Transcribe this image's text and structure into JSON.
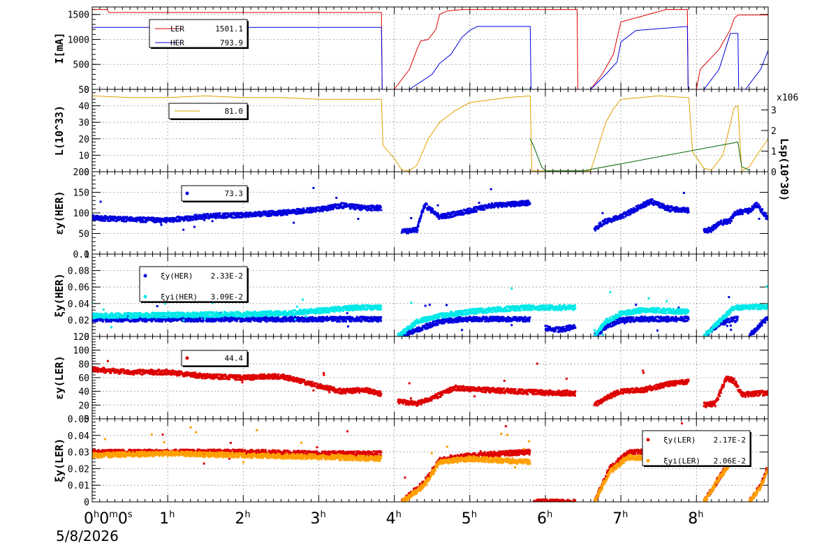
{
  "date_label": "5/8/2026",
  "chart_data": [
    {
      "type": "line",
      "ylabel": "I[mA]",
      "ylim": [
        0,
        1650
      ],
      "yticks": [
        0,
        500,
        1000,
        1500
      ],
      "legend": [
        {
          "name": "LER",
          "value": "1501.1",
          "color": "#dd0000"
        },
        {
          "name": "HER",
          "value": "793.9",
          "color": "#0000dd"
        }
      ],
      "series": [
        {
          "name": "LER",
          "color": "#dd0000",
          "x": [
            0,
            0.2,
            0.22,
            3.83,
            3.84,
            3.95,
            4.0,
            4.2,
            4.3,
            4.35,
            4.45,
            4.55,
            4.6,
            4.7,
            4.9,
            5.2,
            6.42,
            6.43,
            6.6,
            6.75,
            6.9,
            7.0,
            7.6,
            7.88,
            7.89,
            8.0,
            8.05,
            8.3,
            8.45,
            8.5,
            8.55,
            8.95
          ],
          "y": [
            1600,
            1600,
            1540,
            1540,
            0,
            0,
            0,
            400,
            800,
            970,
            1000,
            1200,
            1500,
            1570,
            1600,
            1600,
            1600,
            0,
            0,
            300,
            700,
            1350,
            1600,
            1600,
            0,
            0,
            400,
            800,
            1200,
            1420,
            1490,
            1490
          ]
        },
        {
          "name": "HER",
          "color": "#0000dd",
          "x": [
            0,
            3.83,
            3.84,
            4.1,
            4.2,
            4.5,
            4.6,
            4.75,
            4.9,
            5.0,
            5.1,
            5.8,
            5.81,
            6.4,
            6.6,
            6.8,
            6.95,
            7.0,
            7.2,
            7.88,
            7.89,
            8.1,
            8.3,
            8.45,
            8.55,
            8.56,
            8.65,
            8.75,
            8.85,
            8.95
          ],
          "y": [
            1240,
            1240,
            0,
            0,
            0,
            300,
            520,
            700,
            1050,
            1180,
            1260,
            1260,
            0,
            0,
            0,
            300,
            550,
            950,
            1180,
            1260,
            0,
            0,
            400,
            1120,
            1120,
            0,
            0,
            200,
            400,
            780
          ]
        }
      ]
    },
    {
      "type": "line",
      "ylabel": "L(10^33)",
      "ylim": [
        0,
        50
      ],
      "yticks": [
        0,
        10,
        20,
        30,
        40,
        50
      ],
      "y2label": "Lsp(10^30)",
      "y2lim": [
        0,
        4
      ],
      "y2ticks": [
        0,
        1,
        2,
        3
      ],
      "y2scale": "x10^6",
      "legend": [
        {
          "name": "",
          "value": "81.0",
          "color": "#e0a000"
        }
      ],
      "series": [
        {
          "name": "L",
          "color": "#e0a000",
          "x": [
            0,
            0.5,
            1.0,
            1.5,
            2.0,
            2.5,
            3.0,
            3.5,
            3.83,
            3.85,
            4.0,
            4.1,
            4.2,
            4.3,
            4.45,
            4.6,
            4.8,
            5.0,
            5.5,
            5.8,
            5.82,
            6.6,
            6.7,
            6.8,
            6.9,
            7.0,
            7.5,
            7.9,
            7.95,
            8.1,
            8.2,
            8.35,
            8.5,
            8.55,
            8.6,
            8.7,
            8.8,
            8.95
          ],
          "y": [
            46,
            45,
            45,
            46,
            45,
            45,
            44,
            44,
            44,
            16,
            8,
            1,
            0.5,
            4,
            20,
            30,
            37,
            42,
            45,
            46,
            0.5,
            0.5,
            15,
            30,
            38,
            44,
            46,
            45,
            12,
            2,
            1,
            10,
            39,
            40,
            0.5,
            3,
            10,
            20
          ]
        },
        {
          "name": "Lsp",
          "color": "#006600",
          "x": [
            5.8,
            5.85,
            5.95,
            6.0,
            6.5,
            8.55,
            8.6,
            8.7
          ],
          "y": [
            20,
            15,
            3,
            0.5,
            0.5,
            18,
            3,
            1
          ]
        }
      ]
    },
    {
      "type": "scatter",
      "ylabel": "εy(HER)",
      "ylim": [
        0,
        200
      ],
      "yticks": [
        0,
        50,
        100,
        150,
        200
      ],
      "legend": [
        {
          "name": "",
          "value": "73.3",
          "color": "#0000dd"
        }
      ],
      "series": [
        {
          "name": "εy(HER)",
          "color": "#0000dd",
          "segments": [
            {
              "x": [
                0,
                0.5,
                1.0,
                1.5,
                2.0,
                2.5,
                3.0,
                3.3,
                3.6,
                3.83
              ],
              "y": [
                88,
                84,
                82,
                92,
                95,
                100,
                108,
                118,
                112,
                112
              ]
            },
            {
              "x": [
                4.1,
                4.3,
                4.4,
                4.6,
                5.0,
                5.3,
                5.6,
                5.8
              ],
              "y": [
                55,
                58,
                120,
                90,
                105,
                118,
                122,
                125
              ]
            },
            {
              "x": [
                6.65,
                6.8,
                7.0,
                7.2,
                7.4,
                7.6,
                7.9
              ],
              "y": [
                60,
                80,
                90,
                110,
                128,
                112,
                105
              ]
            },
            {
              "x": [
                8.1,
                8.2,
                8.3,
                8.45,
                8.5,
                8.7,
                8.8,
                8.95
              ],
              "y": [
                55,
                60,
                75,
                80,
                100,
                105,
                120,
                85
              ]
            }
          ]
        }
      ]
    },
    {
      "type": "scatter",
      "ylabel": "ξy(HER)",
      "ylim": [
        0,
        0.1
      ],
      "yticks": [
        0,
        0.02,
        0.04,
        0.06,
        0.08,
        0.1
      ],
      "legend": [
        {
          "name": "ξy(HER)",
          "value": "2.33E-2",
          "color": "#0000dd"
        },
        {
          "name": "ξyi(HER)",
          "value": "3.09E-2",
          "color": "#00e8e8"
        }
      ],
      "series": [
        {
          "name": "ξy(HER)",
          "color": "#0000dd",
          "segments": [
            {
              "x": [
                0,
                1,
                2,
                3,
                3.83
              ],
              "y": [
                0.021,
                0.021,
                0.021,
                0.021,
                0.021
              ]
            },
            {
              "x": [
                4.05,
                4.3,
                4.6,
                4.9,
                5.8
              ],
              "y": [
                0.0,
                0.008,
                0.018,
                0.021,
                0.021
              ]
            },
            {
              "x": [
                6.0,
                6.2,
                6.4
              ],
              "y": [
                0.01,
                0.008,
                0.012
              ]
            },
            {
              "x": [
                6.65,
                6.8,
                7.0,
                7.3,
                7.9
              ],
              "y": [
                0.0,
                0.012,
                0.02,
                0.021,
                0.021
              ]
            },
            {
              "x": [
                8.1,
                8.3,
                8.5,
                8.55
              ],
              "y": [
                0.0,
                0.015,
                0.021,
                0.021
              ]
            },
            {
              "x": [
                8.7,
                8.85,
                8.95
              ],
              "y": [
                0.0,
                0.015,
                0.022
              ]
            }
          ]
        },
        {
          "name": "ξyi(HER)",
          "color": "#00e8e8",
          "segments": [
            {
              "x": [
                0,
                1,
                2,
                2.5,
                3.0,
                3.5,
                3.83
              ],
              "y": [
                0.025,
                0.026,
                0.027,
                0.028,
                0.031,
                0.035,
                0.035
              ]
            },
            {
              "x": [
                4.05,
                4.3,
                4.6,
                5.0,
                5.4,
                5.8,
                6.4
              ],
              "y": [
                0.0,
                0.018,
                0.025,
                0.03,
                0.033,
                0.035,
                0.035
              ]
            },
            {
              "x": [
                6.65,
                6.8,
                7.0,
                7.3,
                7.9
              ],
              "y": [
                0.0,
                0.018,
                0.028,
                0.032,
                0.03
              ]
            },
            {
              "x": [
                8.1,
                8.3,
                8.5,
                8.95
              ],
              "y": [
                0.0,
                0.018,
                0.035,
                0.036
              ]
            }
          ]
        }
      ]
    },
    {
      "type": "scatter",
      "ylabel": "εy(LER)",
      "ylim": [
        0,
        120
      ],
      "yticks": [
        0,
        20,
        40,
        60,
        80,
        100,
        120
      ],
      "legend": [
        {
          "name": "",
          "value": "44.4",
          "color": "#dd0000"
        }
      ],
      "series": [
        {
          "name": "εy(LER)",
          "color": "#dd0000",
          "segments": [
            {
              "x": [
                0,
                0.5,
                1.0,
                1.5,
                2.0,
                2.5,
                3.0,
                3.3,
                3.6,
                3.83
              ],
              "y": [
                72,
                68,
                68,
                62,
                60,
                62,
                48,
                40,
                42,
                36
              ]
            },
            {
              "x": [
                4.05,
                4.3,
                4.5,
                4.8,
                5.2,
                5.6,
                6.0,
                6.4
              ],
              "y": [
                25,
                22,
                30,
                45,
                42,
                40,
                38,
                37
              ]
            },
            {
              "x": [
                6.65,
                6.8,
                7.0,
                7.3,
                7.6,
                7.9
              ],
              "y": [
                20,
                30,
                40,
                42,
                50,
                55
              ]
            },
            {
              "x": [
                8.1,
                8.25,
                8.4,
                8.5,
                8.6,
                8.95
              ],
              "y": [
                20,
                22,
                60,
                55,
                35,
                38
              ]
            }
          ]
        }
      ]
    },
    {
      "type": "scatter",
      "ylabel": "ξy(LER)",
      "ylim": [
        0,
        0.05
      ],
      "yticks": [
        0,
        0.01,
        0.02,
        0.03,
        0.04,
        0.05
      ],
      "legend": [
        {
          "name": "ξy(LER)",
          "value": "2.17E-2",
          "color": "#dd0000"
        },
        {
          "name": "ξyi(LER)",
          "value": "2.06E-2",
          "color": "#ffa000"
        }
      ],
      "series": [
        {
          "name": "ξy(LER)",
          "color": "#dd0000",
          "segments": [
            {
              "x": [
                0,
                1,
                2,
                3,
                3.83
              ],
              "y": [
                0.03,
                0.03,
                0.03,
                0.029,
                0.029
              ]
            },
            {
              "x": [
                4.1,
                4.4,
                4.6,
                5.0,
                5.8
              ],
              "y": [
                0.0,
                0.012,
                0.025,
                0.028,
                0.03
              ]
            },
            {
              "x": [
                5.85,
                6.4
              ],
              "y": [
                0.0,
                0.0
              ]
            },
            {
              "x": [
                6.65,
                6.85,
                7.1,
                7.9
              ],
              "y": [
                0.0,
                0.02,
                0.03,
                0.03
              ]
            },
            {
              "x": [
                8.1,
                8.35,
                8.5
              ],
              "y": [
                0.0,
                0.018,
                0.029
              ]
            },
            {
              "x": [
                8.7,
                8.85,
                8.95
              ],
              "y": [
                0.0,
                0.01,
                0.021
              ]
            }
          ]
        },
        {
          "name": "ξyi(LER)",
          "color": "#ffa000",
          "segments": [
            {
              "x": [
                0,
                1,
                2,
                3,
                3.83
              ],
              "y": [
                0.028,
                0.029,
                0.028,
                0.027,
                0.026
              ]
            },
            {
              "x": [
                4.1,
                4.4,
                4.6,
                5.0,
                5.8
              ],
              "y": [
                0.0,
                0.01,
                0.024,
                0.026,
                0.024
              ]
            },
            {
              "x": [
                6.65,
                6.85,
                7.1,
                7.9
              ],
              "y": [
                0.0,
                0.018,
                0.027,
                0.025
              ]
            },
            {
              "x": [
                8.1,
                8.35,
                8.5
              ],
              "y": [
                0.0,
                0.017,
                0.027
              ]
            },
            {
              "x": [
                8.7,
                8.85,
                8.95
              ],
              "y": [
                0.0,
                0.009,
                0.02
              ]
            }
          ]
        }
      ]
    }
  ],
  "x_axis": {
    "xlim": [
      0,
      8.95
    ],
    "ticks": [
      {
        "value": 0,
        "label": "0",
        "sup": "h",
        "extra": "0",
        "extra_sup": "m",
        "extra2": "0",
        "extra2_sup": "s"
      },
      {
        "value": 1,
        "label": "1",
        "sup": "h"
      },
      {
        "value": 2,
        "label": "2",
        "sup": "h"
      },
      {
        "value": 3,
        "label": "3",
        "sup": "h"
      },
      {
        "value": 4,
        "label": "4",
        "sup": "h"
      },
      {
        "value": 5,
        "label": "5",
        "sup": "h"
      },
      {
        "value": 6,
        "label": "6",
        "sup": "h"
      },
      {
        "value": 7,
        "label": "7",
        "sup": "h"
      },
      {
        "value": 8,
        "label": "8",
        "sup": "h"
      }
    ]
  }
}
